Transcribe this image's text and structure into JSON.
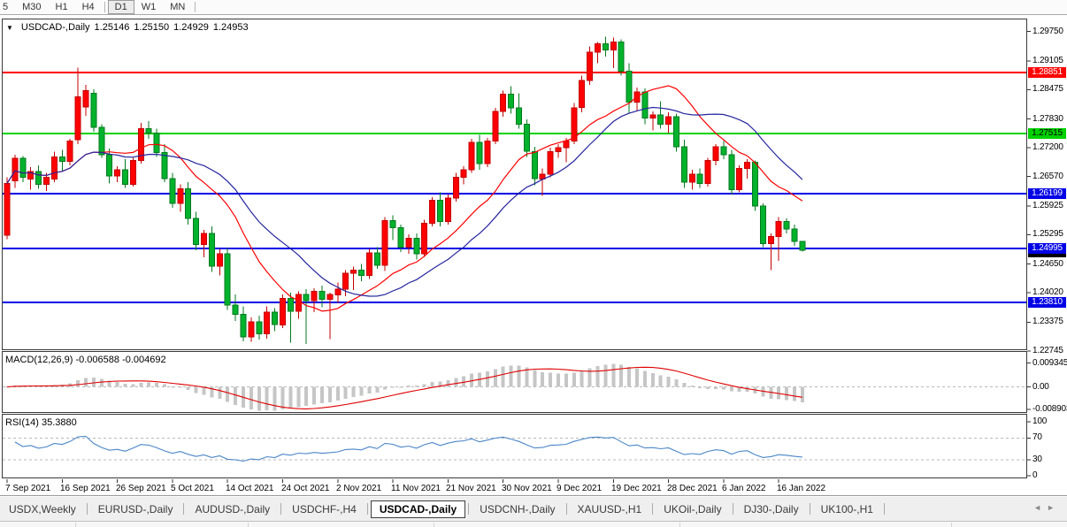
{
  "toolbar": {
    "timeframes": [
      "5",
      "M30",
      "H1",
      "H4",
      "D1",
      "W1",
      "MN"
    ],
    "active": "D1",
    "separators_after": [
      "H4",
      "MN"
    ]
  },
  "chart": {
    "collapse_icon": "▼",
    "title_symbol": "USDCAD-,Daily",
    "ohlc": {
      "open": "1.25146",
      "high": "1.25150",
      "low": "1.24929",
      "close": "1.24953"
    },
    "axis_ticks": [
      "1.29750",
      "1.29105",
      "1.28475",
      "1.27830",
      "1.27200",
      "1.26570",
      "1.25925",
      "1.25295",
      "1.24650",
      "1.24020",
      "1.23375",
      "1.22745"
    ],
    "levels": [
      {
        "price": 1.28851,
        "label": "1.28851",
        "color": "#FF0000",
        "text_color": "#FFFFFF"
      },
      {
        "price": 1.27515,
        "label": "1.27515",
        "color": "#00D200",
        "text_color": "#000000"
      },
      {
        "price": 1.26199,
        "label": "1.26199",
        "color": "#0000E6",
        "text_color": "#FFFFFF"
      },
      {
        "price": 1.24995,
        "label": "1.24995",
        "color": "#0000E6",
        "text_color": "#FFFFFF"
      },
      {
        "price": 1.2381,
        "label": "1.23810",
        "color": "#0000E6",
        "text_color": "#FFFFFF"
      }
    ],
    "current_price": {
      "price": 1.24953,
      "label": "1.24953",
      "color": "#000000",
      "text_color": "#FFFFFF"
    }
  },
  "macd_panel": {
    "label": "MACD(12,26,9) -0.006588 -0.004692",
    "ticks": [
      "0.009345",
      "0.00",
      "-0.008903"
    ],
    "tick_values": [
      0.009345,
      0,
      -0.008903
    ]
  },
  "rsi_panel": {
    "label": "RSI(14) 35.3880",
    "ticks": [
      "100",
      "70",
      "30",
      "0"
    ],
    "tick_values": [
      100,
      70,
      30,
      0
    ],
    "dashed_levels": [
      70,
      30
    ]
  },
  "date_axis": {
    "label_every_bars": 7,
    "labels": [
      "7 Sep 2021",
      "16 Sep 2021",
      "26 Sep 2021",
      "5 Oct 2021",
      "14 Oct 2021",
      "24 Oct 2021",
      "2 Nov 2021",
      "11 Nov 2021",
      "21 Nov 2021",
      "30 Nov 2021",
      "9 Dec 2021",
      "19 Dec 2021",
      "28 Dec 2021",
      "6 Jan 2022",
      "16 Jan 2022"
    ]
  },
  "tabs": {
    "active": "USDCAD-,Daily",
    "scroll_left_icon": "◄",
    "scroll_right_icon": "►",
    "items": [
      "USDX,Weekly",
      "EURUSD-,Daily",
      "AUDUSD-,Daily",
      "USDCHF-,H4",
      "USDCAD-,Daily",
      "USDCNH-,Daily",
      "XAUUSD-,H1",
      "UKOil-,Daily",
      "DJ30-,Daily",
      "UK100-,H1"
    ]
  },
  "chart_data": {
    "type": "candlestick",
    "symbol": "USDCAD",
    "timeframe": "Daily",
    "up_color": "#FF0000",
    "down_color": "#00B22C",
    "price_range": [
      1.2262,
      1.299
    ],
    "ma_fast": {
      "period": 13,
      "color": "#FF0000"
    },
    "ma_slow": {
      "period": 21,
      "color": "#2525A0"
    },
    "macd": {
      "fast": 12,
      "slow": 26,
      "signal": 9,
      "main_value": -0.006588,
      "signal_value": -0.004692,
      "histogram_color": "#C6C6C6",
      "signal_color": "#E00000",
      "scale": [
        -0.008903,
        0.009345
      ]
    },
    "rsi": {
      "period": 14,
      "value": 35.388,
      "color": "#4A86C8",
      "scale": [
        0,
        100
      ]
    },
    "support_resistance": [
      1.28851,
      1.27515,
      1.26199,
      1.24995,
      1.2381
    ],
    "candles": [
      [
        1.2528,
        1.2655,
        1.252,
        1.2642
      ],
      [
        1.2648,
        1.2705,
        1.2632,
        1.2697
      ],
      [
        1.2697,
        1.2702,
        1.2645,
        1.2655
      ],
      [
        1.2652,
        1.2678,
        1.2628,
        1.2668
      ],
      [
        1.2668,
        1.2682,
        1.263,
        1.264
      ],
      [
        1.264,
        1.2665,
        1.2625,
        1.2655
      ],
      [
        1.2652,
        1.2712,
        1.2645,
        1.27
      ],
      [
        1.27,
        1.2715,
        1.2668,
        1.269
      ],
      [
        1.269,
        1.274,
        1.2682,
        1.2735
      ],
      [
        1.2738,
        1.2896,
        1.2728,
        1.2832
      ],
      [
        1.281,
        1.2858,
        1.279,
        1.2845
      ],
      [
        1.284,
        1.2848,
        1.2755,
        1.2765
      ],
      [
        1.2765,
        1.2772,
        1.2698,
        1.2705
      ],
      [
        1.2705,
        1.2718,
        1.2642,
        1.2658
      ],
      [
        1.2658,
        1.268,
        1.2645,
        1.2672
      ],
      [
        1.2672,
        1.2695,
        1.2632,
        1.264
      ],
      [
        1.264,
        1.2698,
        1.2635,
        1.2692
      ],
      [
        1.2692,
        1.2775,
        1.2685,
        1.2762
      ],
      [
        1.2762,
        1.2778,
        1.274,
        1.2752
      ],
      [
        1.2752,
        1.2762,
        1.27,
        1.271
      ],
      [
        1.271,
        1.2728,
        1.2645,
        1.2652
      ],
      [
        1.2652,
        1.2665,
        1.2588,
        1.2598
      ],
      [
        1.2598,
        1.264,
        1.258,
        1.263
      ],
      [
        1.263,
        1.2645,
        1.2552,
        1.2565
      ],
      [
        1.2565,
        1.258,
        1.2495,
        1.2508
      ],
      [
        1.2508,
        1.254,
        1.248,
        1.2532
      ],
      [
        1.2532,
        1.2548,
        1.2448,
        1.246
      ],
      [
        1.246,
        1.2498,
        1.244,
        1.2488
      ],
      [
        1.2488,
        1.25,
        1.2365,
        1.2375
      ],
      [
        1.2375,
        1.2398,
        1.234,
        1.2355
      ],
      [
        1.2355,
        1.2372,
        1.2296,
        1.2305
      ],
      [
        1.2305,
        1.2348,
        1.2295,
        1.2338
      ],
      [
        1.2338,
        1.2352,
        1.23,
        1.2312
      ],
      [
        1.2312,
        1.2372,
        1.2302,
        1.236
      ],
      [
        1.236,
        1.2368,
        1.2318,
        1.2332
      ],
      [
        1.2332,
        1.2398,
        1.2325,
        1.239
      ],
      [
        1.239,
        1.2402,
        1.2293,
        1.2362
      ],
      [
        1.2362,
        1.2405,
        1.2345,
        1.2398
      ],
      [
        1.2398,
        1.241,
        1.229,
        1.2385
      ],
      [
        1.2385,
        1.2412,
        1.236,
        1.2405
      ],
      [
        1.2405,
        1.2418,
        1.237,
        1.2388
      ],
      [
        1.2388,
        1.2402,
        1.2301,
        1.2398
      ],
      [
        1.2398,
        1.2425,
        1.238,
        1.241
      ],
      [
        1.241,
        1.2452,
        1.2395,
        1.2445
      ],
      [
        1.2445,
        1.246,
        1.2408,
        1.2452
      ],
      [
        1.2452,
        1.2465,
        1.2428,
        1.244
      ],
      [
        1.244,
        1.2498,
        1.2432,
        1.249
      ],
      [
        1.249,
        1.2502,
        1.2455,
        1.2462
      ],
      [
        1.2462,
        1.2568,
        1.245,
        1.256
      ],
      [
        1.256,
        1.2572,
        1.2518,
        1.2545
      ],
      [
        1.2545,
        1.2552,
        1.2492,
        1.2502
      ],
      [
        1.2502,
        1.253,
        1.2488,
        1.2522
      ],
      [
        1.2522,
        1.2532,
        1.2475,
        1.2488
      ],
      [
        1.2488,
        1.2562,
        1.2482,
        1.2555
      ],
      [
        1.2555,
        1.2612,
        1.2548,
        1.2605
      ],
      [
        1.2605,
        1.2622,
        1.2548,
        1.2558
      ],
      [
        1.2558,
        1.2618,
        1.2552,
        1.261
      ],
      [
        1.261,
        1.2665,
        1.2602,
        1.2655
      ],
      [
        1.2655,
        1.268,
        1.264,
        1.2672
      ],
      [
        1.2672,
        1.274,
        1.2665,
        1.2732
      ],
      [
        1.2732,
        1.2748,
        1.2672,
        1.2685
      ],
      [
        1.2685,
        1.2742,
        1.2678,
        1.2735
      ],
      [
        1.2735,
        1.2808,
        1.2728,
        1.28
      ],
      [
        1.28,
        1.2845,
        1.2788,
        1.2838
      ],
      [
        1.2838,
        1.2855,
        1.2795,
        1.2808
      ],
      [
        1.2808,
        1.284,
        1.2762,
        1.2772
      ],
      [
        1.2772,
        1.2782,
        1.27,
        1.2712
      ],
      [
        1.2712,
        1.2722,
        1.2638,
        1.2652
      ],
      [
        1.2652,
        1.2675,
        1.2615,
        1.2662
      ],
      [
        1.2662,
        1.272,
        1.2655,
        1.2712
      ],
      [
        1.2712,
        1.2728,
        1.2698,
        1.272
      ],
      [
        1.272,
        1.2742,
        1.2688,
        1.2735
      ],
      [
        1.2735,
        1.2818,
        1.2728,
        1.2808
      ],
      [
        1.2808,
        1.2878,
        1.2798,
        1.2868
      ],
      [
        1.2868,
        1.2942,
        1.2858,
        1.293
      ],
      [
        1.293,
        1.2952,
        1.2905,
        1.2948
      ],
      [
        1.2948,
        1.2964,
        1.292,
        1.2935
      ],
      [
        1.2935,
        1.2962,
        1.2895,
        1.2952
      ],
      [
        1.2952,
        1.2958,
        1.2878,
        1.2888
      ],
      [
        1.2888,
        1.2905,
        1.2795,
        1.282
      ],
      [
        1.282,
        1.2852,
        1.2802,
        1.2842
      ],
      [
        1.2842,
        1.285,
        1.2772,
        1.2785
      ],
      [
        1.2785,
        1.28,
        1.2758,
        1.2792
      ],
      [
        1.2792,
        1.2822,
        1.2762,
        1.2772
      ],
      [
        1.2772,
        1.2798,
        1.2752,
        1.2788
      ],
      [
        1.2788,
        1.2795,
        1.2712,
        1.2722
      ],
      [
        1.2722,
        1.2738,
        1.2632,
        1.2645
      ],
      [
        1.2645,
        1.2672,
        1.2628,
        1.2662
      ],
      [
        1.2662,
        1.2675,
        1.2632,
        1.2642
      ],
      [
        1.2642,
        1.2698,
        1.2635,
        1.2692
      ],
      [
        1.2692,
        1.2728,
        1.2682,
        1.2722
      ],
      [
        1.2722,
        1.2735,
        1.2695,
        1.2705
      ],
      [
        1.2705,
        1.2715,
        1.2618,
        1.2628
      ],
      [
        1.2628,
        1.2682,
        1.2622,
        1.2675
      ],
      [
        1.2675,
        1.2695,
        1.2652,
        1.2688
      ],
      [
        1.2688,
        1.2692,
        1.2582,
        1.2592
      ],
      [
        1.2592,
        1.2598,
        1.2502,
        1.251
      ],
      [
        1.251,
        1.2532,
        1.2452,
        1.2525
      ],
      [
        1.2525,
        1.2568,
        1.2472,
        1.2558
      ],
      [
        1.2558,
        1.2565,
        1.2532,
        1.2542
      ],
      [
        1.2542,
        1.2552,
        1.2505,
        1.25146
      ],
      [
        1.25146,
        1.2515,
        1.24929,
        1.24953
      ]
    ]
  }
}
